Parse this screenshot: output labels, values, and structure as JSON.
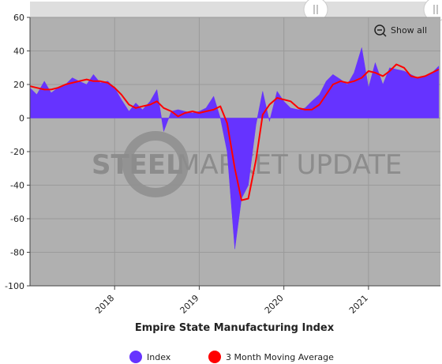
{
  "chart_data": {
    "type": "area",
    "title": "Empire State Manufacturing Index",
    "xlabel": "",
    "ylabel": "",
    "ylim": [
      -100,
      60
    ],
    "yticks": [
      -100,
      -80,
      -60,
      -40,
      -20,
      0,
      20,
      40,
      60
    ],
    "xlim": [
      2017.0,
      2021.85
    ],
    "xticks": [
      {
        "x": 2018.0,
        "label": "2018"
      },
      {
        "x": 2019.0,
        "label": "2019"
      },
      {
        "x": 2020.0,
        "label": "2020"
      },
      {
        "x": 2021.0,
        "label": "2021"
      }
    ],
    "grid": true,
    "legend_position": "bottom",
    "show_all_label": "Show all",
    "watermark": "STEEL MARKET UPDATE",
    "series": [
      {
        "name": "Index",
        "style": "area",
        "color": "#6633ff",
        "x": [
          2017.0,
          2017.08,
          2017.17,
          2017.25,
          2017.33,
          2017.42,
          2017.5,
          2017.58,
          2017.67,
          2017.75,
          2017.83,
          2017.92,
          2018.0,
          2018.08,
          2018.17,
          2018.25,
          2018.33,
          2018.42,
          2018.5,
          2018.58,
          2018.67,
          2018.75,
          2018.83,
          2018.92,
          2019.0,
          2019.08,
          2019.17,
          2019.25,
          2019.33,
          2019.42,
          2019.5,
          2019.58,
          2019.67,
          2019.75,
          2019.83,
          2019.92,
          2020.0,
          2020.08,
          2020.17,
          2020.25,
          2020.33,
          2020.42,
          2020.5,
          2020.58,
          2020.67,
          2020.75,
          2020.83,
          2020.92,
          2021.0,
          2021.08,
          2021.17,
          2021.25,
          2021.33,
          2021.42,
          2021.5,
          2021.58,
          2021.67,
          2021.75,
          2021.83
        ],
        "values": [
          18,
          14,
          22,
          15,
          18,
          20,
          24,
          22,
          20,
          26,
          21,
          22,
          18,
          11,
          4,
          9,
          5,
          10,
          17,
          -8,
          4,
          5,
          4,
          3,
          4,
          6,
          13,
          0,
          -20,
          -78,
          -48,
          -40,
          -4,
          16,
          -2,
          16,
          10,
          6,
          5,
          6,
          10,
          14,
          22,
          26,
          23,
          20,
          27,
          42,
          18,
          33,
          20,
          30,
          29,
          28,
          26,
          24,
          25,
          27,
          31
        ]
      },
      {
        "name": "3 Month Moving Average",
        "style": "line",
        "color": "#ff0000",
        "x": [
          2017.0,
          2017.08,
          2017.17,
          2017.25,
          2017.33,
          2017.42,
          2017.5,
          2017.58,
          2017.67,
          2017.75,
          2017.83,
          2017.92,
          2018.0,
          2018.08,
          2018.17,
          2018.25,
          2018.33,
          2018.42,
          2018.5,
          2018.58,
          2018.67,
          2018.75,
          2018.83,
          2018.92,
          2019.0,
          2019.08,
          2019.17,
          2019.25,
          2019.33,
          2019.42,
          2019.5,
          2019.58,
          2019.67,
          2019.75,
          2019.83,
          2019.92,
          2020.0,
          2020.08,
          2020.17,
          2020.25,
          2020.33,
          2020.42,
          2020.5,
          2020.58,
          2020.67,
          2020.75,
          2020.83,
          2020.92,
          2021.0,
          2021.08,
          2021.17,
          2021.25,
          2021.33,
          2021.42,
          2021.5,
          2021.58,
          2021.67,
          2021.75,
          2021.83
        ],
        "values": [
          19,
          18,
          17,
          17,
          18,
          20,
          21,
          22,
          23,
          22,
          22,
          21,
          18,
          14,
          8,
          6,
          7,
          8,
          10,
          6,
          4,
          1,
          3,
          4,
          3,
          4,
          5,
          7,
          -3,
          -30,
          -49,
          -48,
          -25,
          2,
          8,
          12,
          11,
          10,
          6,
          5,
          5,
          8,
          14,
          20,
          22,
          21,
          22,
          24,
          28,
          27,
          25,
          28,
          32,
          30,
          25,
          24,
          25,
          27,
          29
        ]
      }
    ]
  }
}
